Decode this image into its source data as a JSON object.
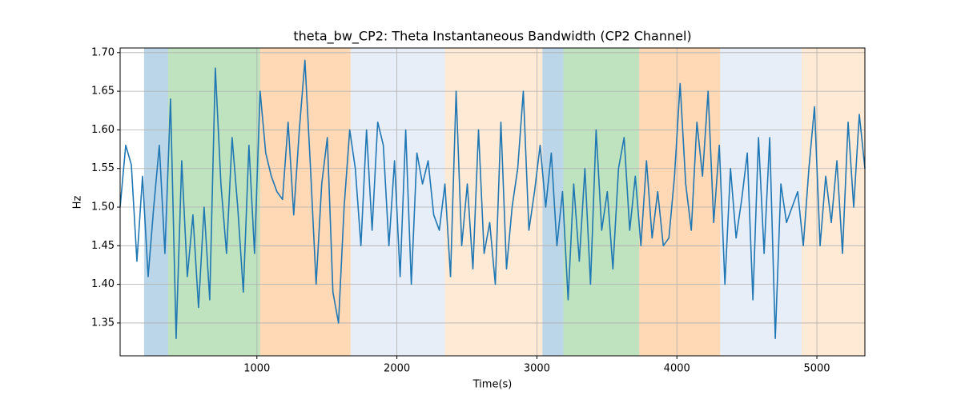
{
  "chart_data": {
    "type": "line",
    "title": "theta_bw_CP2: Theta Instantaneous Bandwidth (CP2 Channel)",
    "x_label": "Time(s)",
    "y_label": "Hz",
    "xlim": [
      23,
      5343
    ],
    "ylim": [
      1.3075,
      1.706
    ],
    "xticks": [
      1000,
      2000,
      3000,
      4000,
      5000
    ],
    "yticks": [
      1.35,
      {
        "value": 1.4,
        "label": "1.40"
      },
      1.45,
      {
        "value": 1.5,
        "label": "1.50"
      },
      1.55,
      {
        "value": 1.6,
        "label": "1.60"
      },
      1.65,
      {
        "value": 1.7,
        "label": "1.70"
      }
    ],
    "grid": true,
    "regions": [
      {
        "start": 194,
        "end": 366,
        "color": "#1f77b4"
      },
      {
        "start": 366,
        "end": 1023,
        "color": "#2ca02c"
      },
      {
        "start": 1023,
        "end": 1669,
        "color": "#ff7f0e"
      },
      {
        "start": 1669,
        "end": 2343,
        "color": "#aec7e8"
      },
      {
        "start": 2343,
        "end": 3040,
        "color": "#ffbb78"
      },
      {
        "start": 3040,
        "end": 3189,
        "color": "#1f77b4"
      },
      {
        "start": 3189,
        "end": 3731,
        "color": "#2ca02c"
      },
      {
        "start": 3731,
        "end": 4309,
        "color": "#ff7f0e"
      },
      {
        "start": 4309,
        "end": 4891,
        "color": "#aec7e8"
      },
      {
        "start": 4891,
        "end": 5343,
        "color": "#ffbb78"
      }
    ],
    "x": [
      23,
      63,
      103,
      143,
      183,
      223,
      263,
      303,
      343,
      383,
      423,
      463,
      503,
      543,
      583,
      623,
      663,
      703,
      743,
      783,
      823,
      863,
      903,
      943,
      983,
      1023,
      1063,
      1103,
      1143,
      1183,
      1223,
      1263,
      1303,
      1343,
      1383,
      1423,
      1463,
      1503,
      1543,
      1583,
      1623,
      1663,
      1703,
      1743,
      1783,
      1823,
      1863,
      1903,
      1943,
      1983,
      2023,
      2063,
      2103,
      2143,
      2183,
      2223,
      2263,
      2303,
      2343,
      2383,
      2423,
      2463,
      2503,
      2543,
      2583,
      2623,
      2663,
      2703,
      2743,
      2783,
      2823,
      2863,
      2903,
      2943,
      2983,
      3023,
      3063,
      3103,
      3143,
      3183,
      3223,
      3263,
      3303,
      3343,
      3383,
      3423,
      3463,
      3503,
      3543,
      3583,
      3623,
      3663,
      3703,
      3743,
      3783,
      3823,
      3863,
      3903,
      3943,
      3983,
      4023,
      4063,
      4103,
      4143,
      4183,
      4223,
      4263,
      4303,
      4343,
      4383,
      4423,
      4463,
      4503,
      4543,
      4583,
      4623,
      4663,
      4703,
      4743,
      4783,
      4823,
      4863,
      4903,
      4943,
      4983,
      5023,
      5063,
      5103,
      5143,
      5183,
      5223,
      5263,
      5303,
      5343
    ],
    "series": [
      {
        "color": "#1f77b4",
        "values": [
          1.5,
          1.58,
          1.555,
          1.43,
          1.54,
          1.41,
          1.5,
          1.58,
          1.44,
          1.64,
          1.33,
          1.56,
          1.41,
          1.49,
          1.37,
          1.5,
          1.38,
          1.68,
          1.53,
          1.44,
          1.59,
          1.5,
          1.39,
          1.58,
          1.44,
          1.65,
          1.57,
          1.54,
          1.52,
          1.51,
          1.61,
          1.49,
          1.6,
          1.69,
          1.55,
          1.4,
          1.53,
          1.59,
          1.39,
          1.35,
          1.5,
          1.6,
          1.55,
          1.45,
          1.6,
          1.47,
          1.61,
          1.58,
          1.45,
          1.56,
          1.41,
          1.6,
          1.4,
          1.57,
          1.53,
          1.56,
          1.49,
          1.47,
          1.53,
          1.41,
          1.65,
          1.45,
          1.53,
          1.42,
          1.6,
          1.44,
          1.48,
          1.4,
          1.61,
          1.42,
          1.5,
          1.55,
          1.65,
          1.47,
          1.52,
          1.58,
          1.5,
          1.57,
          1.45,
          1.52,
          1.38,
          1.53,
          1.43,
          1.55,
          1.4,
          1.6,
          1.47,
          1.52,
          1.42,
          1.55,
          1.59,
          1.47,
          1.54,
          1.45,
          1.56,
          1.46,
          1.52,
          1.45,
          1.46,
          1.54,
          1.66,
          1.53,
          1.47,
          1.61,
          1.54,
          1.65,
          1.48,
          1.58,
          1.4,
          1.55,
          1.46,
          1.51,
          1.57,
          1.38,
          1.59,
          1.44,
          1.59,
          1.33,
          1.53,
          1.48,
          1.5,
          1.52,
          1.45,
          1.55,
          1.63,
          1.45,
          1.54,
          1.48,
          1.56,
          1.44,
          1.61,
          1.5,
          1.62,
          1.55
        ]
      }
    ]
  }
}
